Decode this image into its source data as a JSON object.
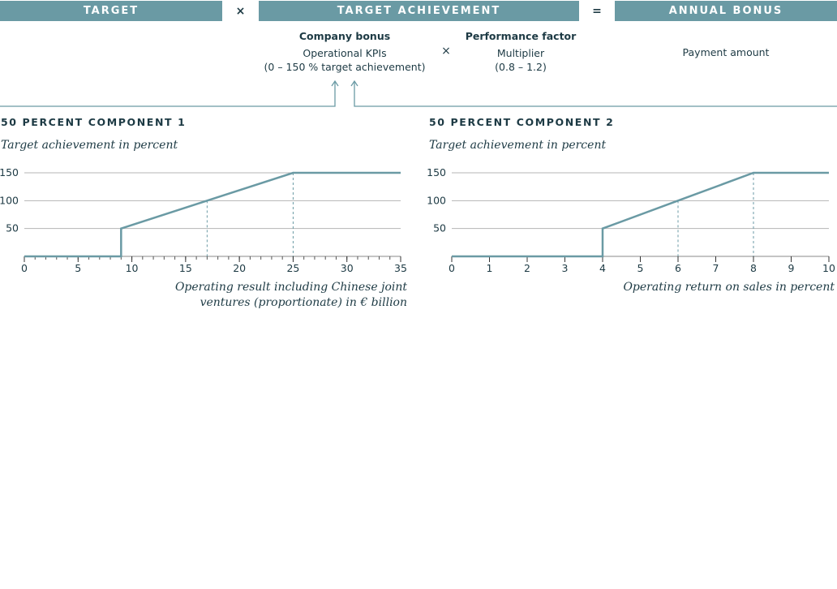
{
  "header": {
    "target_label": "TARGET",
    "times_symbol": "×",
    "achievement_label": "TARGET ACHIEVEMENT",
    "equals_symbol": "=",
    "bonus_label": "ANNUAL BONUS"
  },
  "formula": {
    "company_bonus": "Company bonus",
    "kpis_line1": "Operational KPIs",
    "kpis_line2": "(0 – 150 % target achievement)",
    "times_symbol": "×",
    "performance_factor": "Performance factor",
    "multiplier": "Multiplier",
    "multiplier_range": "(0.8 – 1.2)",
    "payment_amount": "Payment amount"
  },
  "colors": {
    "accent": "#6a9aa4",
    "text": "#1d3a44",
    "gridline": "#b5b5b5"
  },
  "chart_data": [
    {
      "type": "line",
      "heading": "50 PERCENT COMPONENT 1",
      "ylabel": "Target achievement in percent",
      "xlabel_line1": "Operating result including Chinese joint",
      "xlabel_line2": "ventures (proportionate) in € billion",
      "xlim": [
        0,
        35
      ],
      "ylim": [
        0,
        150
      ],
      "xticks": [
        0,
        5,
        10,
        15,
        20,
        25,
        30,
        35
      ],
      "yticks": [
        50,
        100,
        150
      ],
      "minor_tick_step": 1,
      "grid": true,
      "series": [
        {
          "x": [
            0,
            9,
            9,
            17,
            25,
            35
          ],
          "y": [
            0,
            0,
            50,
            100,
            150,
            150
          ]
        }
      ],
      "reference_x": [
        17,
        25
      ]
    },
    {
      "type": "line",
      "heading": "50 PERCENT COMPONENT 2",
      "ylabel": "Target achievement in percent",
      "xlabel_line1": "Operating return on sales in percent",
      "xlabel_line2": "",
      "xlim": [
        0,
        10
      ],
      "ylim": [
        0,
        150
      ],
      "xticks": [
        0,
        1,
        2,
        3,
        4,
        5,
        6,
        7,
        8,
        9,
        10
      ],
      "yticks": [
        50,
        100,
        150
      ],
      "minor_tick_step": 1,
      "grid": true,
      "series": [
        {
          "x": [
            0,
            4,
            4,
            6,
            8,
            10
          ],
          "y": [
            0,
            0,
            50,
            100,
            150,
            150
          ]
        }
      ],
      "reference_x": [
        6,
        8
      ]
    }
  ]
}
